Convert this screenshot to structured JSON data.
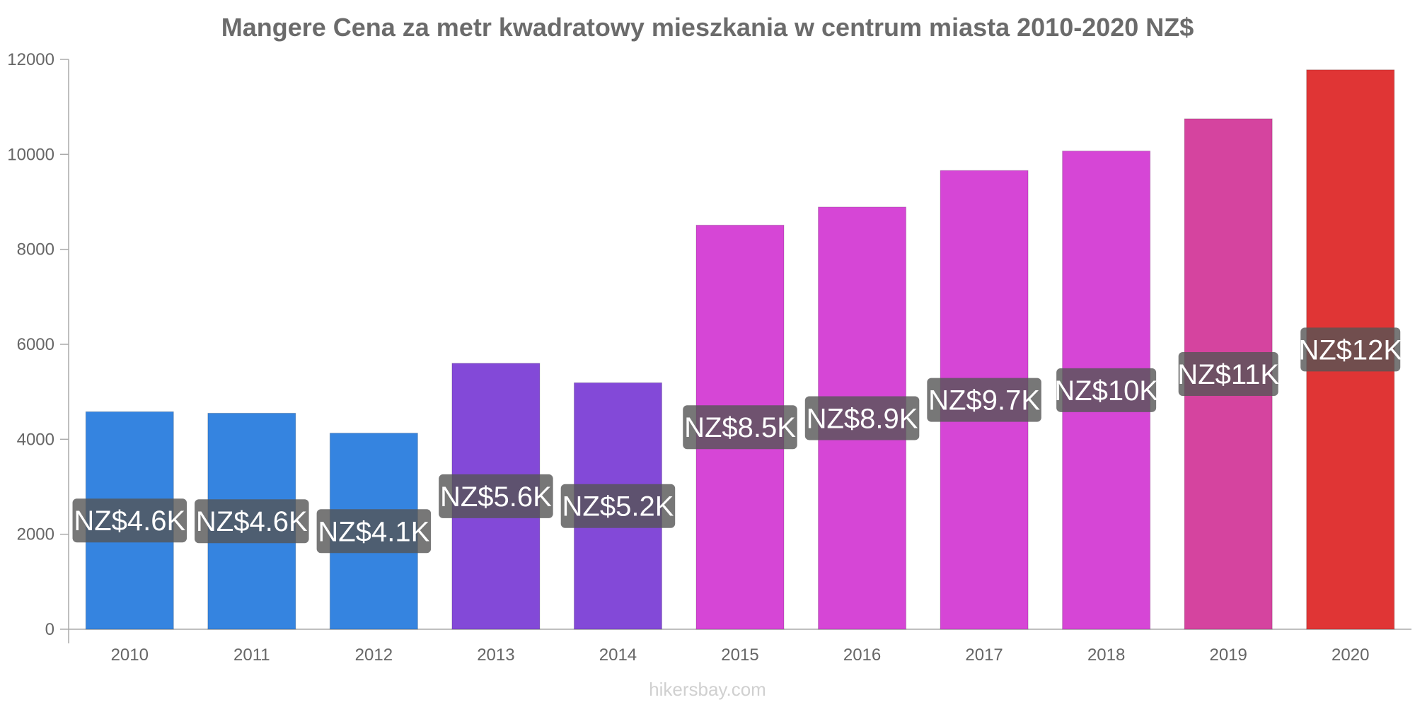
{
  "chart_data": {
    "type": "bar",
    "title": "Mangere Cena za metr kwadratowy mieszkania w centrum miasta 2010-2020 NZ$",
    "xlabel": "",
    "ylabel": "",
    "ylim": [
      0,
      12000
    ],
    "yticks": [
      0,
      2000,
      4000,
      6000,
      8000,
      10000,
      12000
    ],
    "grid": false,
    "legend": "none",
    "categories": [
      "2010",
      "2011",
      "2012",
      "2013",
      "2014",
      "2015",
      "2016",
      "2017",
      "2018",
      "2019",
      "2020"
    ],
    "values": [
      4580,
      4550,
      4130,
      5600,
      5190,
      8510,
      8890,
      9660,
      10070,
      10750,
      11780
    ],
    "data_labels": [
      "NZ$4.6K",
      "NZ$4.6K",
      "NZ$4.1K",
      "NZ$5.6K",
      "NZ$5.2K",
      "NZ$8.5K",
      "NZ$8.9K",
      "NZ$9.7K",
      "NZ$10K",
      "NZ$11K",
      "NZ$12K"
    ],
    "bar_colors": [
      "#3584e0",
      "#3584e0",
      "#3584e0",
      "#8349d8",
      "#8349d8",
      "#d646d6",
      "#d646d6",
      "#d646d6",
      "#d646d6",
      "#d5449f",
      "#e03535"
    ],
    "label_box_color": "#555555"
  },
  "watermark": "hikersbay.com"
}
